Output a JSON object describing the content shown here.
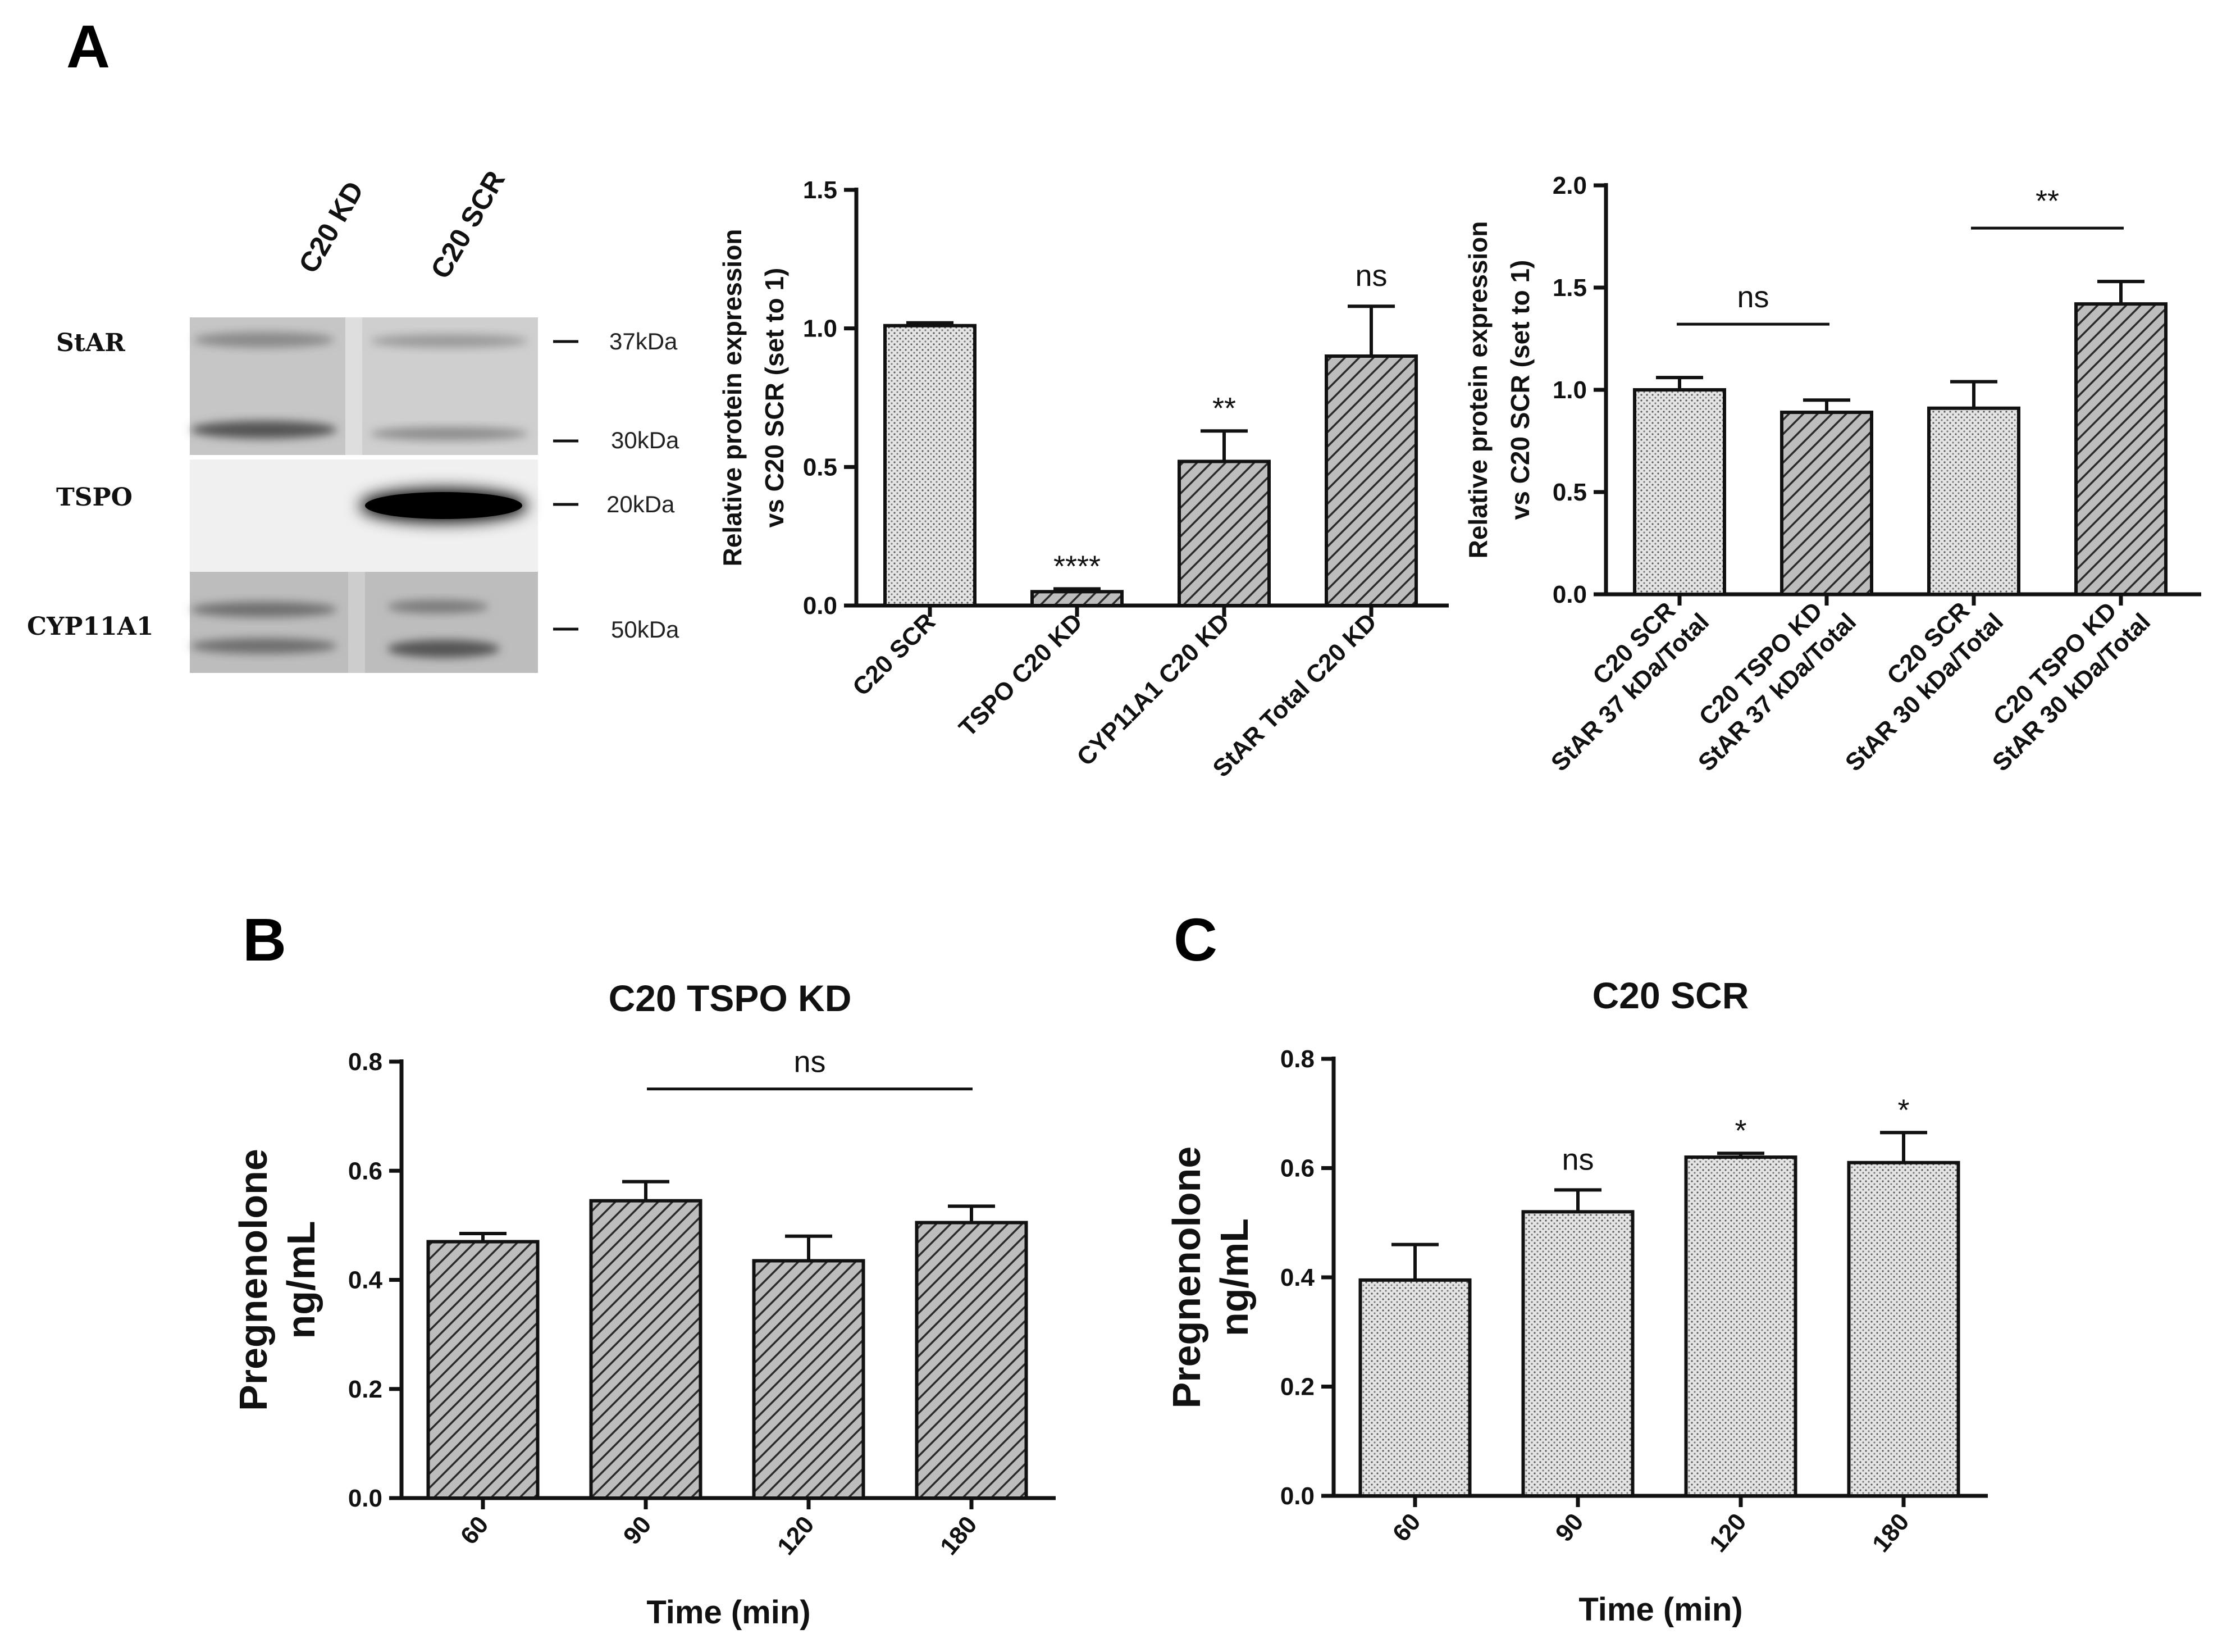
{
  "panels": {
    "a": "A",
    "b": "B",
    "c": "C"
  },
  "blot": {
    "lanes": [
      "C20 KD",
      "C20 SCR"
    ],
    "proteins": [
      "StAR",
      "TSPO",
      "CYP11A1"
    ],
    "markers": [
      "37kDa",
      "30kDa",
      "20kDa",
      "50kDa"
    ]
  },
  "chart_data": [
    {
      "id": "a-middle",
      "type": "bar",
      "categories": [
        "C20 SCR",
        "TSPO C20 KD",
        "CYP11A1 C20 KD",
        "StAR Total C20 KD"
      ],
      "values": [
        1.01,
        0.05,
        0.52,
        0.9
      ],
      "errors": [
        0.01,
        0.01,
        0.11,
        0.18
      ],
      "patterns": [
        "dots",
        "hatch",
        "hatch",
        "hatch"
      ],
      "significance": [
        "",
        "****",
        "**",
        "ns"
      ],
      "ylabel": [
        "Relative protein expression",
        "vs C20 SCR (set to 1)"
      ],
      "ylim": [
        0,
        1.5
      ],
      "yticks": [
        "0.0",
        "0.5",
        "1.0",
        "1.5"
      ]
    },
    {
      "id": "a-right",
      "type": "bar",
      "categories": [
        [
          "C20 SCR",
          "StAR 37 kDa/Total"
        ],
        [
          "C20 TSPO KD",
          "StAR 37 kDa/Total"
        ],
        [
          "C20 SCR",
          "StAR 30 kDa/Total"
        ],
        [
          "C20 TSPO KD",
          "StAR 30 kDa/Total"
        ]
      ],
      "values": [
        1.0,
        0.89,
        0.91,
        1.42
      ],
      "errors": [
        0.06,
        0.06,
        0.13,
        0.11
      ],
      "patterns": [
        "dots",
        "hatch",
        "dots",
        "hatch"
      ],
      "brackets": [
        {
          "from": 0,
          "to": 1,
          "label": "ns"
        },
        {
          "from": 2,
          "to": 3,
          "label": "**"
        }
      ],
      "ylabel": [
        "Relative protein expression",
        "vs C20 SCR (set to 1)"
      ],
      "ylim": [
        0,
        2.0
      ],
      "yticks": [
        "0.0",
        "0.5",
        "1.0",
        "1.5",
        "2.0"
      ]
    },
    {
      "id": "b",
      "type": "bar",
      "title": "C20 TSPO KD",
      "categories": [
        "60",
        "90",
        "120",
        "180"
      ],
      "values": [
        0.47,
        0.545,
        0.435,
        0.505
      ],
      "errors": [
        0.015,
        0.035,
        0.045,
        0.03
      ],
      "patterns": [
        "hatch",
        "hatch",
        "hatch",
        "hatch"
      ],
      "brackets": [
        {
          "from": 1,
          "to": 3,
          "label": "ns"
        }
      ],
      "xlabel": "Time (min)",
      "ylabel": [
        "Pregnenolone",
        "ng/mL"
      ],
      "ylim": [
        0,
        0.8
      ],
      "yticks": [
        "0.0",
        "0.2",
        "0.4",
        "0.6",
        "0.8"
      ]
    },
    {
      "id": "c",
      "type": "bar",
      "title": "C20 SCR",
      "categories": [
        "60",
        "90",
        "120",
        "180"
      ],
      "values": [
        0.395,
        0.52,
        0.62,
        0.61
      ],
      "errors": [
        0.065,
        0.04,
        0.007,
        0.055
      ],
      "patterns": [
        "dots",
        "dots",
        "dots",
        "dots"
      ],
      "significance": [
        "",
        "ns",
        "*",
        "*"
      ],
      "xlabel": "Time (min)",
      "ylabel": [
        "Pregnenolone",
        "ng/mL"
      ],
      "ylim": [
        0,
        0.8
      ],
      "yticks": [
        "0.0",
        "0.2",
        "0.4",
        "0.6",
        "0.8"
      ]
    }
  ]
}
